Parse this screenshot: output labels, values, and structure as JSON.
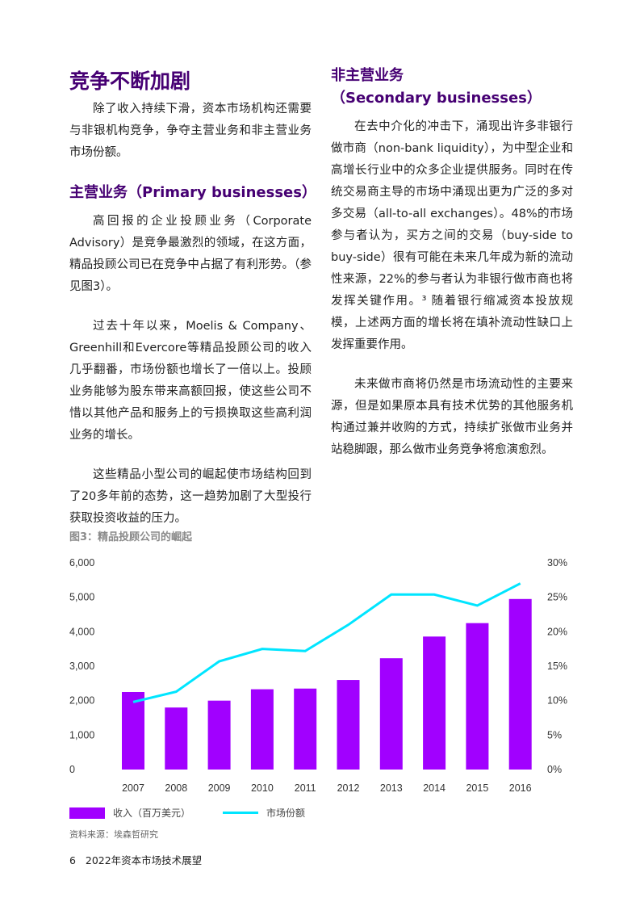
{
  "left": {
    "title": "竞争不断加剧",
    "intro": "除了收入持续下滑，资本市场机构还需要与非银机构竞争，争夺主营业务和非主营业务市场份额。",
    "h2": "主营业务（Primary businesses）",
    "paras": [
      "高回报的企业投顾业务（Corporate Advisory）是竞争最激烈的领域，在这方面，精品投顾公司已在竞争中占据了有利形势。（参见图3）。",
      "过去十年以来，Moelis & Company、Greenhill和Evercore等精品投顾公司的收入几乎翻番，市场份额也增长了一倍以上。投顾业务能够为股东带来高额回报，使这些公司不惜以其他产品和服务上的亏损换取这些高利润业务的增长。",
      "这些精品小型公司的崛起使市场结构回到了20多年前的态势，这一趋势加剧了大型投行获取投资收益的压力。"
    ]
  },
  "right": {
    "h2a": "非主营业务",
    "h2b": "（Secondary businesses）",
    "paras": [
      "在去中介化的冲击下，涌现出许多非银行做市商（non-bank liquidity），为中型企业和高增长行业中的众多企业提供服务。同时在传统交易商主导的市场中涌现出更为广泛的多对多交易（all-to-all exchanges）。48%的市场参与者认为，买方之间的交易（buy-side to buy-side）很有可能在未来几年成为新的流动性来源，22%的参与者认为非银行做市商也将发挥关键作用。³ 随着银行缩减资本投放规模，上述两方面的增长将在填补流动性缺口上发挥重要作用。",
      "未来做市商将仍然是市场流动性的主要来源，但是如果原本具有技术优势的其他服务机构通过兼并收购的方式，持续扩张做市业务并站稳脚跟，那么做市业务竞争将愈演愈烈。"
    ]
  },
  "figure": {
    "title": "图3：精品投顾公司的崛起",
    "source": "资料来源：埃森哲研究"
  },
  "chart_data": {
    "type": "bar+line",
    "categories": [
      "2007",
      "2008",
      "2009",
      "2010",
      "2011",
      "2012",
      "2013",
      "2014",
      "2015",
      "2016"
    ],
    "series": [
      {
        "name": "收入（百万美元）",
        "type": "bar",
        "axis": "left",
        "color": "#a100ff",
        "values": [
          2250,
          1800,
          2000,
          2330,
          2350,
          2600,
          3230,
          3860,
          4250,
          4950
        ]
      },
      {
        "name": "市场份额",
        "type": "line",
        "axis": "right",
        "color": "#00e5ff",
        "values": [
          9.8,
          11.3,
          15.7,
          17.5,
          17.2,
          21.0,
          25.4,
          25.4,
          23.8,
          27.0
        ]
      }
    ],
    "yleft": {
      "ylim": [
        0,
        6000
      ],
      "ticks": [
        "0",
        "1,000",
        "2,000",
        "3,000",
        "4,000",
        "5,000",
        "6,000"
      ]
    },
    "yright": {
      "ylim": [
        0,
        30
      ],
      "ticks": [
        "0%",
        "5%",
        "10%",
        "15%",
        "20%",
        "25%",
        "30%"
      ]
    },
    "grid": false,
    "legend": "bottom-left"
  },
  "footer": {
    "page": "6",
    "title": "2022年资本市场技术展望"
  }
}
